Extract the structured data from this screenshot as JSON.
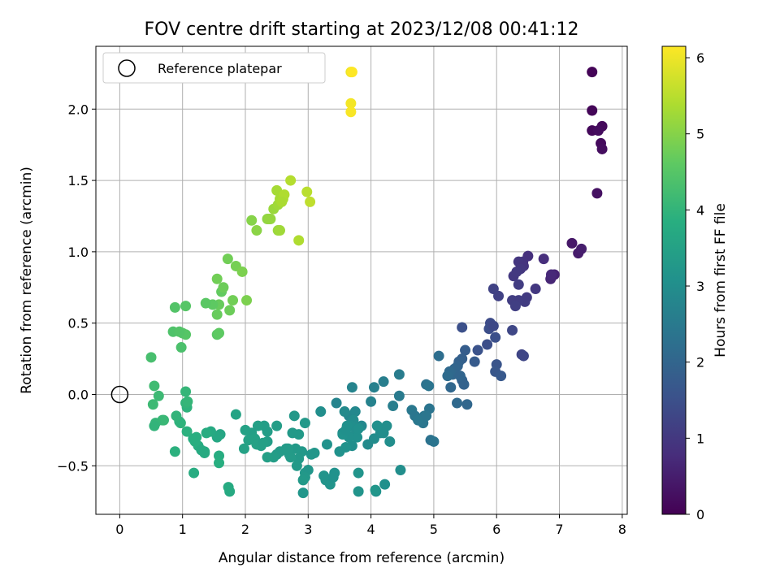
{
  "chart_data": {
    "type": "scatter",
    "title": "FOV centre drift starting at 2023/12/08 00:41:12",
    "xlabel": "Angular distance from reference (arcmin)",
    "ylabel": "Rotation from reference (arcmin)",
    "xlim": [
      -0.38,
      8.08
    ],
    "ylim": [
      -0.84,
      2.44
    ],
    "xticks": [
      "0",
      "1",
      "2",
      "3",
      "4",
      "5",
      "6",
      "7",
      "8"
    ],
    "yticks": [
      "−0.5",
      "0.0",
      "0.5",
      "1.0",
      "1.5",
      "2.0"
    ],
    "grid": true,
    "legend": {
      "position": "top-left",
      "entries": [
        "Reference platepar"
      ]
    },
    "colorbar": {
      "label": "Hours from first FF file",
      "range": [
        0,
        6.15
      ],
      "ticks": [
        "0",
        "1",
        "2",
        "3",
        "4",
        "5",
        "6"
      ],
      "colormap": "viridis"
    },
    "reference": {
      "x": 0,
      "y": 0
    },
    "series": [
      {
        "x": [
          7.52,
          7.52,
          7.52,
          7.68,
          7.66,
          7.62,
          7.68,
          7.6
        ],
        "y": [
          2.26,
          1.99,
          1.85,
          1.88,
          1.76,
          1.85,
          1.72,
          1.41
        ],
        "hours": [
          0.05,
          0.08,
          0.12,
          0.15,
          0.18,
          0.2,
          0.22,
          0.28
        ]
      },
      {
        "x": [
          7.2,
          7.3,
          7.35,
          6.92,
          6.86,
          6.87,
          6.75,
          6.5,
          6.42,
          6.35,
          6.27,
          6.43,
          6.38,
          6.32,
          6.48,
          6.62,
          6.45,
          6.35,
          6.25,
          5.95,
          6.03,
          6.35,
          6.3,
          6.25,
          6.4,
          6.43
        ],
        "y": [
          1.06,
          0.99,
          1.02,
          0.84,
          0.81,
          0.84,
          0.95,
          0.97,
          0.93,
          0.93,
          0.83,
          0.9,
          0.88,
          0.86,
          0.68,
          0.74,
          0.65,
          0.77,
          0.66,
          0.74,
          0.69,
          0.66,
          0.62,
          0.45,
          0.28,
          0.27
        ],
        "hours": [
          0.4,
          0.45,
          0.5,
          0.6,
          0.65,
          0.7,
          0.8,
          0.85,
          0.9,
          0.95,
          1.0,
          0.92,
          0.98,
          1.02,
          1.05,
          1.0,
          1.08,
          1.1,
          1.12,
          1.2,
          1.18,
          1.1,
          1.15,
          1.3,
          1.25,
          1.28
        ]
      },
      {
        "x": [
          5.9,
          5.88,
          5.95,
          5.98,
          5.45,
          5.7,
          5.85,
          6.0,
          5.98,
          6.07,
          5.65,
          5.5,
          5.45,
          5.4,
          5.38,
          5.33,
          5.3,
          5.25,
          5.22,
          5.08,
          5.27,
          5.45,
          5.48,
          5.42,
          5.37,
          5.53,
          4.88,
          4.92,
          4.93,
          4.85,
          4.65,
          4.7,
          4.8,
          4.83,
          4.75,
          4.95,
          5.0,
          4.88,
          4.45,
          4.45,
          4.35
        ],
        "y": [
          0.5,
          0.46,
          0.48,
          0.4,
          0.47,
          0.31,
          0.35,
          0.21,
          0.16,
          0.13,
          0.23,
          0.31,
          0.25,
          0.23,
          0.2,
          0.18,
          0.14,
          0.16,
          0.13,
          0.27,
          0.05,
          0.1,
          0.07,
          0.13,
          -0.06,
          -0.07,
          0.07,
          0.06,
          -0.1,
          -0.15,
          -0.11,
          -0.15,
          -0.17,
          -0.2,
          -0.18,
          -0.32,
          -0.33,
          -0.15,
          -0.01,
          0.14,
          -0.08
        ],
        "hours": [
          1.4,
          1.45,
          1.35,
          1.5,
          1.5,
          1.55,
          1.45,
          1.6,
          1.65,
          1.7,
          1.75,
          1.8,
          1.85,
          1.9,
          1.95,
          2.0,
          2.05,
          2.1,
          2.15,
          2.2,
          2.05,
          1.9,
          1.95,
          2.0,
          2.1,
          2.05,
          2.3,
          2.35,
          2.35,
          2.4,
          2.45,
          2.4,
          2.35,
          2.4,
          2.45,
          2.3,
          2.35,
          2.4,
          2.5,
          2.55,
          2.6
        ]
      },
      {
        "x": [
          4.2,
          4.05,
          4.0,
          3.7,
          3.65,
          3.75,
          3.58,
          3.45,
          3.55,
          3.62,
          3.85,
          4.1,
          4.15,
          4.25,
          4.3,
          3.72,
          3.68,
          3.62,
          3.75,
          3.78,
          3.7,
          3.6,
          3.65,
          3.55,
          3.6,
          3.2,
          3.3,
          3.95,
          4.05,
          4.2,
          4.1,
          3.8,
          3.5,
          3.28,
          3.42,
          3.35,
          3.25,
          3.4,
          3.8,
          4.08,
          4.22,
          4.47
        ],
        "y": [
          0.09,
          0.05,
          -0.05,
          0.05,
          -0.15,
          -0.12,
          -0.12,
          -0.06,
          -0.27,
          -0.23,
          -0.22,
          -0.22,
          -0.27,
          -0.22,
          -0.33,
          -0.18,
          -0.22,
          -0.22,
          -0.28,
          -0.3,
          -0.36,
          -0.37,
          -0.3,
          -0.28,
          -0.25,
          -0.12,
          -0.35,
          -0.35,
          -0.31,
          -0.27,
          -0.22,
          -0.24,
          -0.4,
          -0.6,
          -0.55,
          -0.63,
          -0.57,
          -0.58,
          -0.55,
          -0.68,
          -0.63,
          -0.53
        ],
        "hours": [
          2.6,
          2.65,
          2.7,
          2.75,
          2.8,
          2.85,
          2.9,
          2.75,
          2.9,
          2.95,
          2.85,
          2.9,
          2.95,
          3.0,
          3.0,
          2.95,
          3.0,
          3.05,
          3.0,
          3.05,
          3.0,
          3.1,
          3.05,
          3.1,
          3.05,
          3.0,
          3.1,
          2.9,
          2.95,
          3.0,
          3.05,
          3.05,
          3.1,
          3.15,
          3.1,
          3.15,
          3.15,
          3.1,
          3.15,
          3.1,
          3.05,
          3.0
        ]
      },
      {
        "x": [
          3.8,
          4.07,
          2.92,
          3.1,
          2.78,
          2.95,
          2.85,
          2.75,
          2.65,
          2.9,
          3.05,
          2.55,
          2.5,
          2.7,
          2.8,
          2.3,
          2.35,
          2.2,
          2.1,
          2.15,
          2.0,
          1.98,
          2.25,
          2.35,
          2.5,
          2.45,
          2.35,
          1.85,
          2.05,
          2.18,
          2.28,
          2.85,
          2.72,
          2.68,
          2.95,
          2.82,
          3.0,
          2.95,
          2.92
        ],
        "y": [
          -0.68,
          -0.67,
          -0.69,
          -0.41,
          -0.15,
          -0.2,
          -0.28,
          -0.27,
          -0.38,
          -0.4,
          -0.42,
          -0.4,
          -0.22,
          -0.42,
          -0.38,
          -0.22,
          -0.26,
          -0.22,
          -0.27,
          -0.31,
          -0.25,
          -0.38,
          -0.36,
          -0.33,
          -0.42,
          -0.44,
          -0.44,
          -0.14,
          -0.32,
          -0.35,
          -0.34,
          -0.45,
          -0.44,
          -0.38,
          -0.55,
          -0.5,
          -0.53,
          -0.58,
          -0.6
        ],
        "hours": [
          3.15,
          3.2,
          3.2,
          3.2,
          3.25,
          3.25,
          3.3,
          3.3,
          3.3,
          3.25,
          3.2,
          3.35,
          3.4,
          3.35,
          3.3,
          3.4,
          3.4,
          3.45,
          3.45,
          3.5,
          3.5,
          3.5,
          3.45,
          3.4,
          3.35,
          3.4,
          3.45,
          3.55,
          3.5,
          3.5,
          3.45,
          3.3,
          3.35,
          3.35,
          3.25,
          3.3,
          3.2,
          3.25,
          3.3
        ]
      },
      {
        "x": [
          1.6,
          1.55,
          1.45,
          1.35,
          1.25,
          1.2,
          1.17,
          1.07,
          1.07,
          1.05,
          1.08,
          1.05,
          0.97,
          0.95,
          0.9,
          0.88,
          0.7,
          0.68,
          0.62,
          0.55,
          0.5,
          0.53,
          0.57,
          0.55,
          1.75,
          1.73,
          1.58,
          1.58,
          1.38,
          1.35,
          1.3,
          1.18,
          1.22
        ],
        "y": [
          -0.28,
          -0.3,
          -0.26,
          -0.4,
          -0.36,
          -0.33,
          -0.31,
          -0.26,
          -0.09,
          -0.06,
          -0.05,
          0.02,
          -0.2,
          -0.19,
          -0.15,
          -0.4,
          -0.18,
          -0.18,
          -0.01,
          0.06,
          0.26,
          -0.07,
          -0.2,
          -0.22,
          -0.68,
          -0.65,
          -0.43,
          -0.48,
          -0.27,
          -0.41,
          -0.39,
          -0.55,
          -0.3
        ],
        "hours": [
          3.6,
          3.65,
          3.7,
          3.75,
          3.8,
          3.85,
          3.85,
          3.9,
          3.95,
          4.0,
          4.05,
          4.05,
          4.0,
          3.95,
          4.0,
          3.9,
          4.1,
          4.1,
          4.15,
          4.2,
          4.3,
          4.15,
          4.05,
          4.0,
          3.7,
          3.75,
          3.8,
          3.85,
          3.8,
          3.75,
          3.75,
          3.8,
          3.85
        ]
      },
      {
        "x": [
          0.85,
          0.88,
          1.0,
          1.05,
          1.55,
          1.58,
          1.62,
          1.58,
          1.55,
          1.65,
          1.72,
          1.85,
          1.8,
          1.95,
          2.02,
          1.48,
          1.37,
          1.55,
          1.05,
          0.95,
          0.98,
          1.75
        ],
        "y": [
          0.44,
          0.61,
          0.43,
          0.42,
          0.42,
          0.43,
          0.72,
          0.63,
          0.56,
          0.75,
          0.95,
          0.9,
          0.66,
          0.86,
          0.66,
          0.63,
          0.64,
          0.81,
          0.62,
          0.44,
          0.33,
          0.59
        ],
        "hours": [
          4.4,
          4.45,
          4.5,
          4.5,
          4.55,
          4.6,
          4.65,
          4.7,
          4.7,
          4.75,
          4.8,
          4.85,
          4.8,
          4.9,
          4.9,
          4.6,
          4.55,
          4.8,
          4.5,
          4.45,
          4.35,
          4.75
        ]
      },
      {
        "x": [
          2.1,
          2.18,
          2.35,
          2.4,
          2.5,
          2.45,
          2.52,
          2.55,
          2.6,
          2.62,
          2.72,
          2.58,
          2.52,
          2.98,
          3.03,
          2.85,
          2.55,
          2.38
        ],
        "y": [
          1.22,
          1.15,
          1.23,
          1.23,
          1.43,
          1.3,
          1.33,
          1.37,
          1.37,
          1.4,
          1.5,
          1.35,
          1.15,
          1.42,
          1.35,
          1.08,
          1.15,
          1.23
        ],
        "hours": [
          5.0,
          5.05,
          5.1,
          5.15,
          5.3,
          5.2,
          5.25,
          5.3,
          5.35,
          5.4,
          5.45,
          5.35,
          5.2,
          5.5,
          5.55,
          5.4,
          5.25,
          5.15
        ]
      },
      {
        "x": [
          3.68,
          3.68,
          3.68,
          3.7
        ],
        "y": [
          2.26,
          2.04,
          1.98,
          2.26
        ],
        "hours": [
          6.0,
          6.05,
          6.1,
          6.15
        ]
      }
    ]
  }
}
